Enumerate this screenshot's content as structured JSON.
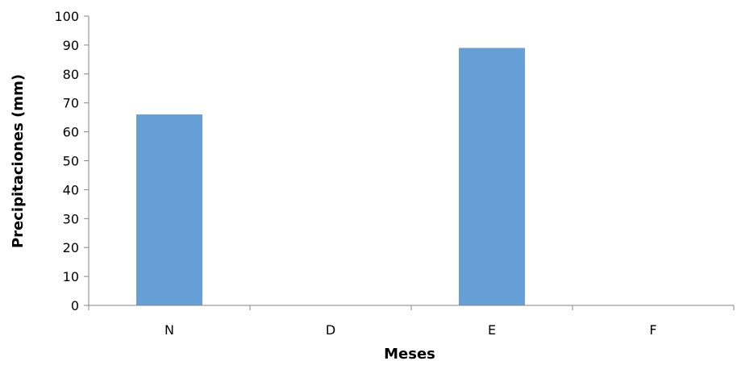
{
  "chart_data": {
    "type": "bar",
    "categories": [
      "N",
      "D",
      "E",
      "F"
    ],
    "values": [
      66,
      0,
      89,
      0
    ],
    "xlabel": "Meses",
    "ylabel": "Precipitaciones (mm)",
    "ylim": [
      0,
      100
    ],
    "yticks": [
      0,
      10,
      20,
      30,
      40,
      50,
      60,
      70,
      80,
      90,
      100
    ],
    "bar_color": "#659fd5",
    "axis_color": "#868686",
    "grid": false,
    "legend": "none"
  }
}
